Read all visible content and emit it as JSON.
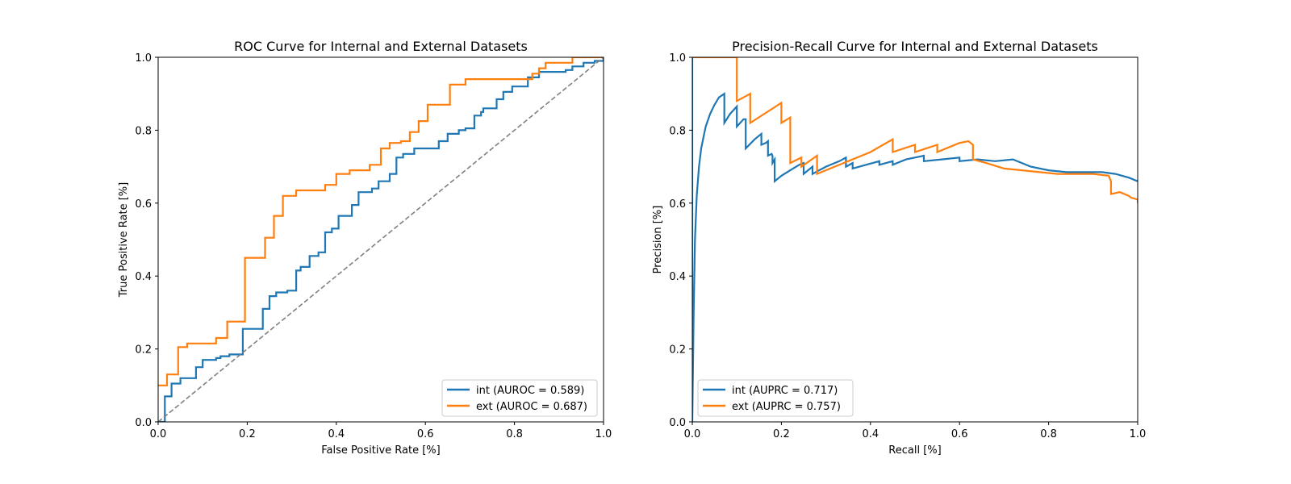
{
  "chart_data": [
    {
      "type": "line",
      "title": "ROC Curve for Internal and External Datasets",
      "xlabel": "False Positive Rate [%]",
      "ylabel": "True Positive Rate [%]",
      "xlim": [
        0.0,
        1.0
      ],
      "ylim": [
        0.0,
        1.0
      ],
      "xticks": [
        "0.0",
        "0.2",
        "0.4",
        "0.6",
        "0.8",
        "1.0"
      ],
      "yticks": [
        "0.0",
        "0.2",
        "0.4",
        "0.6",
        "0.8",
        "1.0"
      ],
      "grid": false,
      "legend_position": "lower-right",
      "series": [
        {
          "name": "int (AUROC = 0.589)",
          "color": "#1f77b4",
          "step": true,
          "x": [
            0.0,
            0.015,
            0.03,
            0.05,
            0.085,
            0.1,
            0.13,
            0.14,
            0.16,
            0.19,
            0.235,
            0.25,
            0.265,
            0.29,
            0.31,
            0.32,
            0.34,
            0.36,
            0.375,
            0.39,
            0.405,
            0.435,
            0.45,
            0.48,
            0.495,
            0.52,
            0.535,
            0.55,
            0.575,
            0.585,
            0.6,
            0.63,
            0.65,
            0.675,
            0.69,
            0.71,
            0.725,
            0.73,
            0.76,
            0.775,
            0.79,
            0.795,
            0.805,
            0.83,
            0.855,
            0.875,
            0.915,
            0.93,
            0.955,
            0.98,
            1.0
          ],
          "y": [
            0.0,
            0.07,
            0.105,
            0.12,
            0.15,
            0.17,
            0.175,
            0.18,
            0.185,
            0.255,
            0.31,
            0.345,
            0.355,
            0.36,
            0.415,
            0.425,
            0.455,
            0.465,
            0.52,
            0.53,
            0.565,
            0.595,
            0.63,
            0.64,
            0.66,
            0.68,
            0.725,
            0.735,
            0.75,
            0.75,
            0.75,
            0.77,
            0.79,
            0.8,
            0.805,
            0.84,
            0.85,
            0.86,
            0.885,
            0.905,
            0.905,
            0.92,
            0.92,
            0.945,
            0.96,
            0.96,
            0.965,
            0.975,
            0.985,
            0.99,
            1.0
          ]
        },
        {
          "name": "ext (AUROC = 0.687)",
          "color": "#ff7f0e",
          "step": true,
          "x": [
            0.0,
            0.02,
            0.045,
            0.065,
            0.13,
            0.155,
            0.195,
            0.24,
            0.26,
            0.28,
            0.31,
            0.32,
            0.375,
            0.4,
            0.43,
            0.475,
            0.5,
            0.52,
            0.545,
            0.565,
            0.585,
            0.605,
            0.655,
            0.69,
            0.74,
            0.84,
            0.855,
            0.87,
            0.93,
            1.0
          ],
          "y": [
            0.1,
            0.13,
            0.205,
            0.215,
            0.23,
            0.275,
            0.45,
            0.505,
            0.565,
            0.62,
            0.635,
            0.635,
            0.65,
            0.68,
            0.69,
            0.705,
            0.75,
            0.765,
            0.77,
            0.795,
            0.825,
            0.87,
            0.925,
            0.94,
            0.94,
            0.955,
            0.97,
            0.985,
            1.0,
            1.0
          ]
        },
        {
          "name": "",
          "color": "#808080",
          "dashed": true,
          "x": [
            0.0,
            1.0
          ],
          "y": [
            0.0,
            1.0
          ]
        }
      ]
    },
    {
      "type": "line",
      "title": "Precision-Recall Curve for Internal and External Datasets",
      "xlabel": "Recall [%]",
      "ylabel": "Precision [%]",
      "xlim": [
        0.0,
        1.0
      ],
      "ylim": [
        0.0,
        1.0
      ],
      "xticks": [
        "0.0",
        "0.2",
        "0.4",
        "0.6",
        "0.8",
        "1.0"
      ],
      "yticks": [
        "0.0",
        "0.2",
        "0.4",
        "0.6",
        "0.8",
        "1.0"
      ],
      "grid": false,
      "legend_position": "lower-left",
      "series": [
        {
          "name": "int (AUPRC = 0.717)",
          "color": "#1f77b4",
          "x": [
            0.0,
            0.0,
            0.003,
            0.006,
            0.01,
            0.015,
            0.02,
            0.025,
            0.03,
            0.04,
            0.05,
            0.06,
            0.072,
            0.072,
            0.085,
            0.1,
            0.1,
            0.115,
            0.12,
            0.12,
            0.14,
            0.155,
            0.155,
            0.165,
            0.17,
            0.17,
            0.178,
            0.18,
            0.18,
            0.185,
            0.185,
            0.2,
            0.22,
            0.24,
            0.25,
            0.25,
            0.27,
            0.27,
            0.3,
            0.33,
            0.345,
            0.345,
            0.36,
            0.36,
            0.39,
            0.42,
            0.42,
            0.45,
            0.45,
            0.48,
            0.52,
            0.52,
            0.56,
            0.6,
            0.6,
            0.64,
            0.68,
            0.72,
            0.74,
            0.76,
            0.8,
            0.84,
            0.88,
            0.92,
            0.95,
            0.98,
            1.0
          ],
          "y": [
            1.0,
            0.0,
            0.3,
            0.5,
            0.62,
            0.7,
            0.75,
            0.78,
            0.81,
            0.845,
            0.87,
            0.89,
            0.9,
            0.82,
            0.845,
            0.865,
            0.81,
            0.83,
            0.83,
            0.75,
            0.775,
            0.79,
            0.76,
            0.765,
            0.77,
            0.73,
            0.735,
            0.73,
            0.71,
            0.72,
            0.66,
            0.675,
            0.69,
            0.705,
            0.71,
            0.68,
            0.7,
            0.68,
            0.7,
            0.715,
            0.725,
            0.7,
            0.71,
            0.695,
            0.705,
            0.715,
            0.705,
            0.715,
            0.705,
            0.72,
            0.73,
            0.715,
            0.72,
            0.725,
            0.715,
            0.72,
            0.715,
            0.72,
            0.71,
            0.7,
            0.69,
            0.685,
            0.685,
            0.685,
            0.68,
            0.67,
            0.66
          ]
        },
        {
          "name": "ext (AUPRC = 0.757)",
          "color": "#ff7f0e",
          "x": [
            0.0,
            0.1,
            0.1,
            0.13,
            0.13,
            0.2,
            0.2,
            0.22,
            0.22,
            0.245,
            0.245,
            0.28,
            0.28,
            0.4,
            0.45,
            0.45,
            0.5,
            0.5,
            0.55,
            0.55,
            0.6,
            0.62,
            0.63,
            0.63,
            0.66,
            0.7,
            0.74,
            0.78,
            0.82,
            0.86,
            0.9,
            0.935,
            0.94,
            0.94,
            0.96,
            0.98,
            0.985,
            1.0,
            1.0
          ],
          "y": [
            1.0,
            1.0,
            0.88,
            0.9,
            0.82,
            0.875,
            0.82,
            0.835,
            0.71,
            0.725,
            0.7,
            0.73,
            0.68,
            0.74,
            0.775,
            0.74,
            0.76,
            0.74,
            0.76,
            0.74,
            0.765,
            0.77,
            0.76,
            0.72,
            0.71,
            0.695,
            0.69,
            0.685,
            0.68,
            0.68,
            0.68,
            0.675,
            0.66,
            0.625,
            0.63,
            0.62,
            0.615,
            0.61,
            0.6
          ]
        }
      ]
    }
  ]
}
